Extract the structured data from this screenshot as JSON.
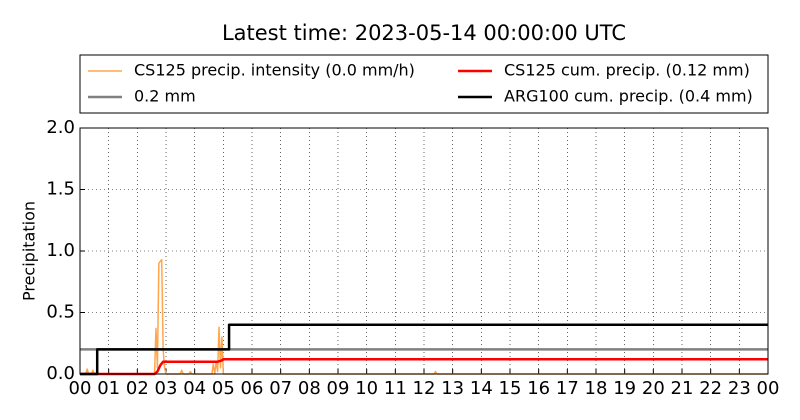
{
  "chart_data": {
    "type": "line",
    "title": "Latest time: 2023-05-14 00:00:00 UTC",
    "y_label": "Precipitation",
    "xlim": [
      0,
      24
    ],
    "xticks": [
      {
        "value": 0,
        "label": "00"
      },
      {
        "value": 1,
        "label": "01"
      },
      {
        "value": 2,
        "label": "02"
      },
      {
        "value": 3,
        "label": "03"
      },
      {
        "value": 4,
        "label": "04"
      },
      {
        "value": 5,
        "label": "05"
      },
      {
        "value": 6,
        "label": "06"
      },
      {
        "value": 7,
        "label": "07"
      },
      {
        "value": 8,
        "label": "08"
      },
      {
        "value": 9,
        "label": "09"
      },
      {
        "value": 10,
        "label": "10"
      },
      {
        "value": 11,
        "label": "11"
      },
      {
        "value": 12,
        "label": "12"
      },
      {
        "value": 13,
        "label": "13"
      },
      {
        "value": 14,
        "label": "14"
      },
      {
        "value": 15,
        "label": "15"
      },
      {
        "value": 16,
        "label": "16"
      },
      {
        "value": 17,
        "label": "17"
      },
      {
        "value": 18,
        "label": "18"
      },
      {
        "value": 19,
        "label": "19"
      },
      {
        "value": 20,
        "label": "20"
      },
      {
        "value": 21,
        "label": "21"
      },
      {
        "value": 22,
        "label": "22"
      },
      {
        "value": 23,
        "label": "23"
      },
      {
        "value": 24,
        "label": "00"
      }
    ],
    "ylim": [
      0,
      2
    ],
    "yticks": [
      {
        "value": 0,
        "label": "0.0"
      },
      {
        "value": 0.5,
        "label": "0.5"
      },
      {
        "value": 1,
        "label": "1.0"
      },
      {
        "value": 1.5,
        "label": "1.5"
      },
      {
        "value": 2,
        "label": "2.0"
      }
    ],
    "grid": true,
    "series": [
      {
        "name": "CS125 precip. intensity (0.0 mm/h)",
        "color": "#ffa64d",
        "width": 1.5,
        "x": [
          0,
          0.2,
          0.25,
          0.3,
          0.4,
          0.45,
          0.5,
          2.6,
          2.65,
          2.7,
          2.75,
          2.85,
          2.9,
          2.95,
          3.0,
          3.05,
          3.5,
          3.55,
          3.6,
          3.8,
          3.85,
          3.9,
          4.6,
          4.65,
          4.7,
          4.75,
          4.8,
          4.85,
          4.9,
          4.95,
          5.0,
          5.05,
          5.1,
          12.35,
          12.4,
          12.45,
          24
        ],
        "values": [
          0,
          0,
          0.04,
          0,
          0,
          0.03,
          0,
          0,
          0.37,
          0.05,
          0.9,
          0.93,
          0.2,
          0.05,
          0,
          0,
          0,
          0.03,
          0,
          0,
          0.02,
          0,
          0,
          0.08,
          0,
          0.1,
          0.02,
          0.38,
          0.05,
          0.3,
          0,
          0,
          0,
          0,
          0.02,
          0,
          0
        ]
      },
      {
        "name": "0.2 mm",
        "color": "#808080",
        "width": 2.5,
        "x": [
          0,
          24
        ],
        "values": [
          0.2,
          0.2
        ]
      },
      {
        "name": "CS125 cum. precip. (0.12 mm)",
        "color": "#ff0000",
        "width": 2.5,
        "x": [
          0,
          2.6,
          2.7,
          2.8,
          2.9,
          4.8,
          4.95,
          5.0,
          24
        ],
        "values": [
          0,
          0,
          0.02,
          0.07,
          0.1,
          0.1,
          0.11,
          0.12,
          0.12
        ]
      },
      {
        "name": "ARG100 cum. precip. (0.4 mm)",
        "color": "#000000",
        "width": 2.5,
        "x": [
          0,
          0.6,
          0.6,
          5.2,
          5.2,
          24
        ],
        "values": [
          0,
          0,
          0.2,
          0.2,
          0.4,
          0.4
        ]
      }
    ]
  }
}
